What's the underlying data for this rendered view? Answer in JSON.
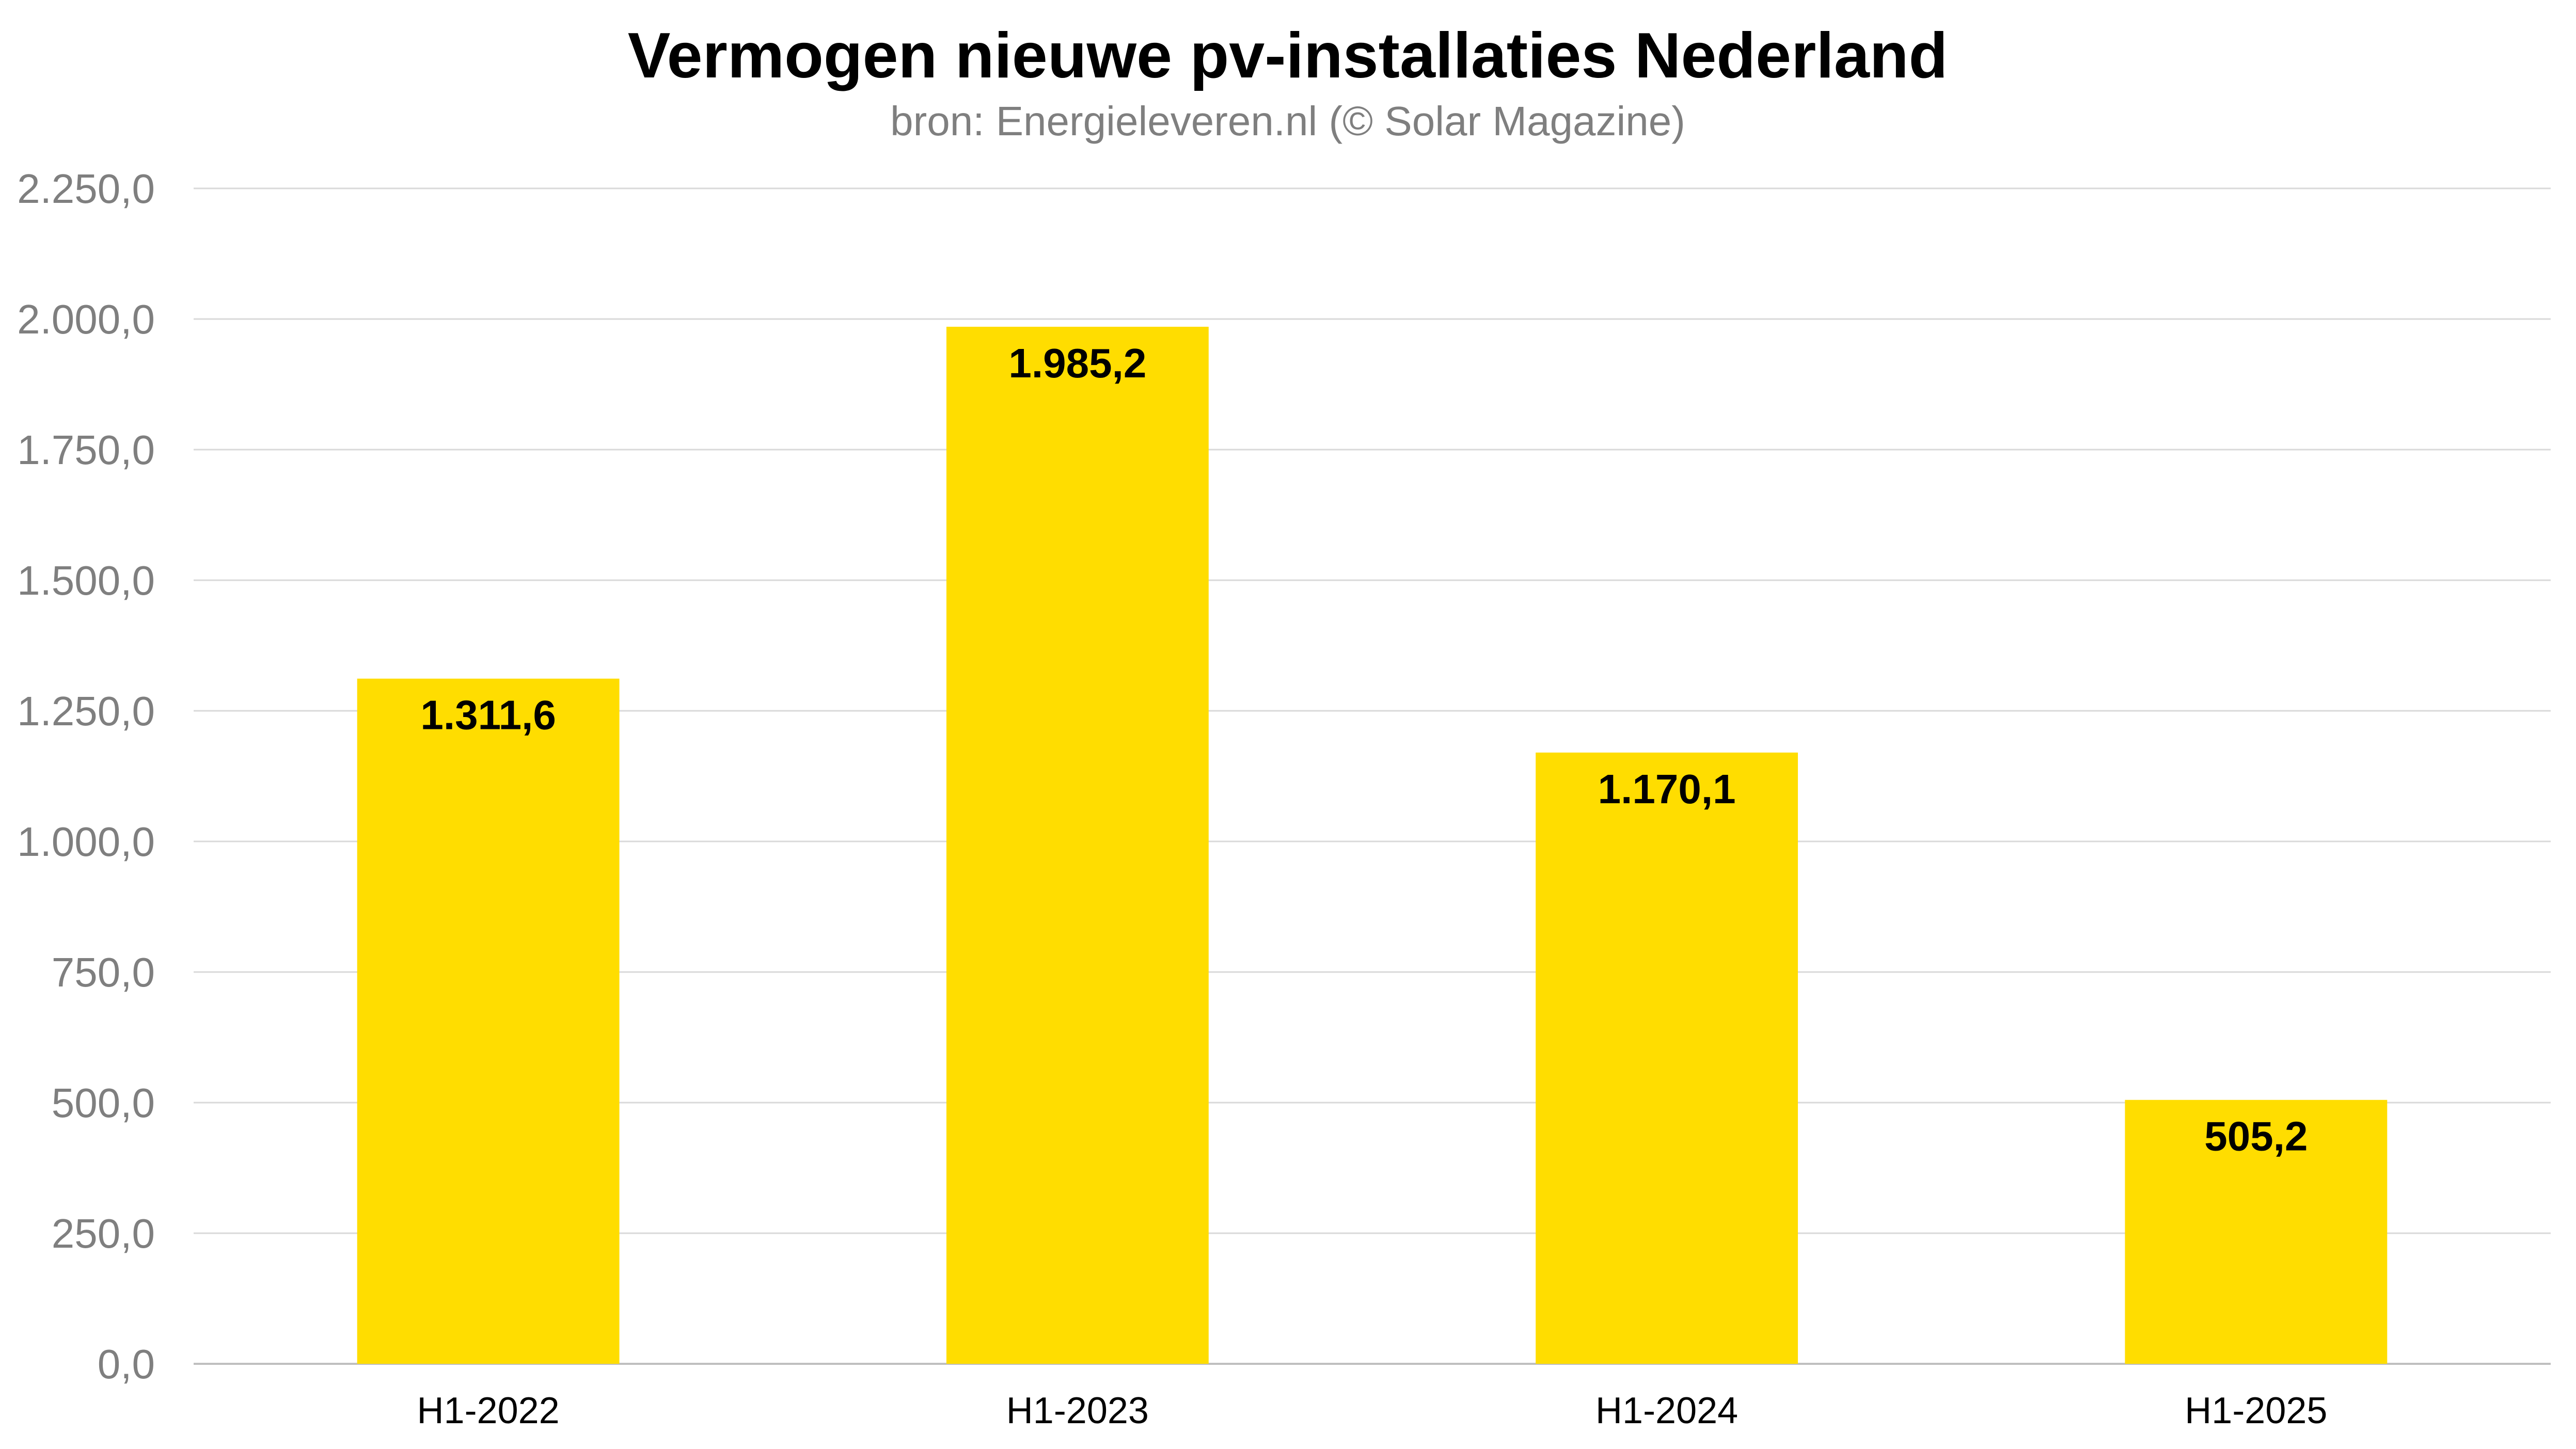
{
  "chart_data": {
    "type": "bar",
    "title": "Vermogen nieuwe pv-installaties Nederland",
    "subtitle": "bron: Energieleveren.nl (© Solar Magazine)",
    "categories": [
      "H1-2022",
      "H1-2023",
      "H1-2024",
      "H1-2025"
    ],
    "values": [
      1311.6,
      1985.2,
      1170.1,
      505.2
    ],
    "value_labels": [
      "1.311,6",
      "1.985,2",
      "1.170,1",
      "505,2"
    ],
    "ylim": [
      0,
      2250
    ],
    "yticks": [
      0,
      250,
      500,
      750,
      1000,
      1250,
      1500,
      1750,
      2000,
      2250
    ],
    "ytick_labels": [
      "0,0",
      "250,0",
      "500,0",
      "750,0",
      "1.000,0",
      "1.250,0",
      "1.500,0",
      "1.750,0",
      "2.000,0",
      "2.250,0"
    ],
    "xlabel": "",
    "ylabel": "",
    "grid": true,
    "legend": "none",
    "colors": {
      "bar": "#FFDD00",
      "title": "#000000",
      "subtitle": "#7F7F7F",
      "grid": "#D9D9D9"
    }
  }
}
